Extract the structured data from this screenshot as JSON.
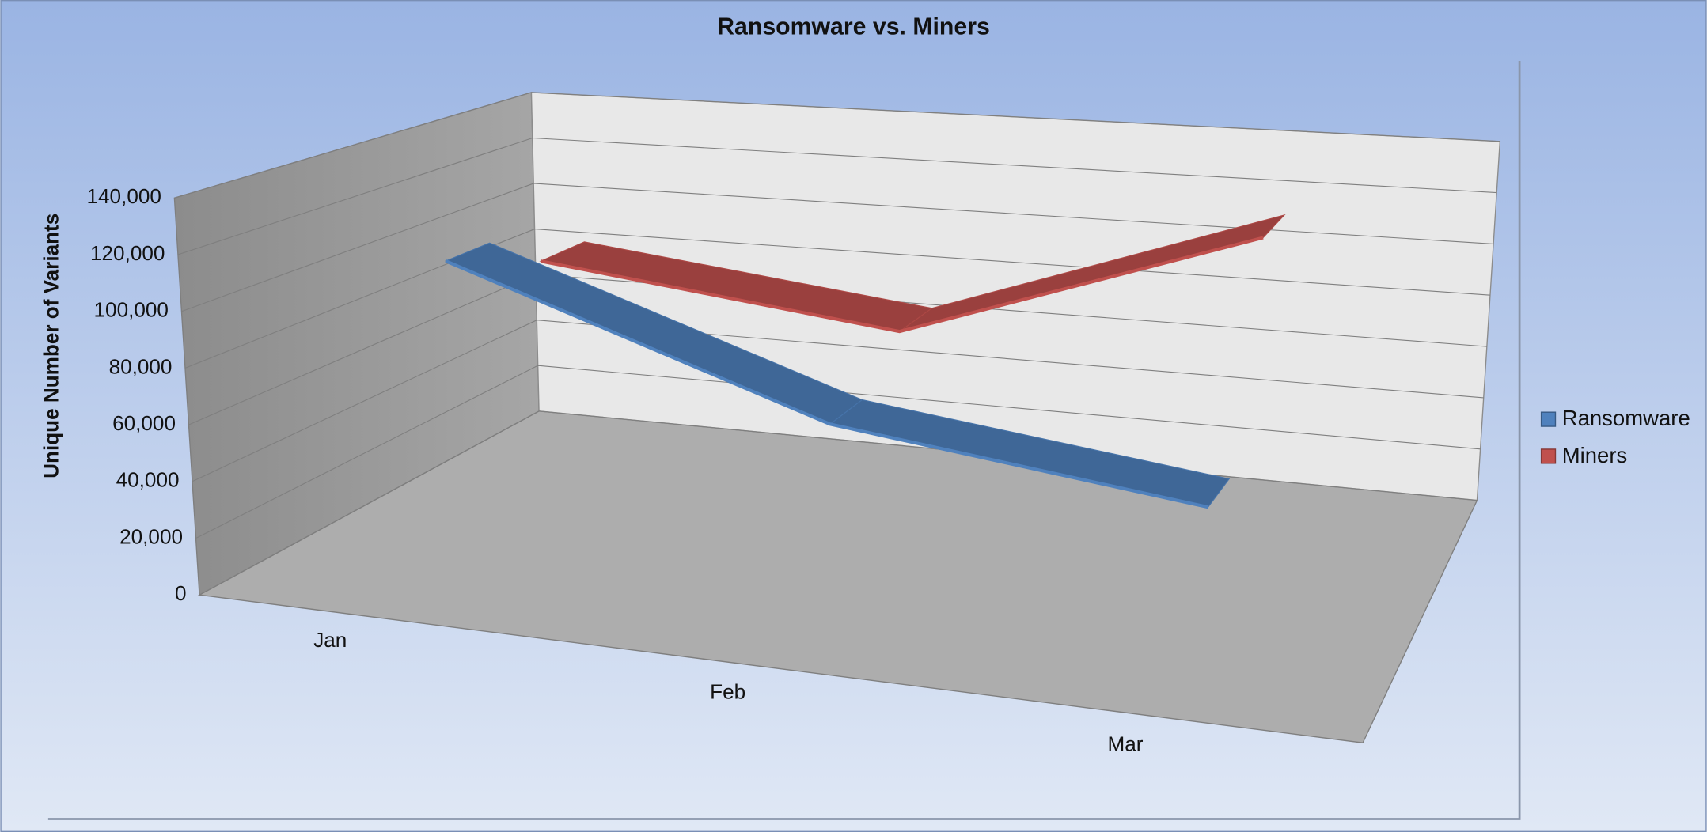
{
  "chart_data": {
    "type": "line3d",
    "title": "Ransomware vs. Miners",
    "y_label": "Unique Number of Variants",
    "categories": [
      "Jan",
      "Feb",
      "Mar"
    ],
    "series": [
      {
        "name": "Ransomware",
        "color": "#4f81bd",
        "values": [
          115000,
          70000,
          55000
        ]
      },
      {
        "name": "Miners",
        "color": "#c0504d",
        "values": [
          100000,
          85000,
          130000
        ]
      }
    ],
    "ylim": [
      0,
      140000
    ],
    "yticks": [
      0,
      {
        "value": 20000,
        "label": "20,000"
      },
      {
        "value": 40000,
        "label": "40,000"
      },
      {
        "value": 60000,
        "label": "60,000"
      },
      {
        "value": 80000,
        "label": "80,000"
      },
      {
        "value": 100000,
        "label": "100,000"
      },
      {
        "value": 120000,
        "label": "120,000"
      },
      {
        "value": 140000,
        "label": "140,000"
      }
    ],
    "grid": true,
    "legend": "right"
  }
}
